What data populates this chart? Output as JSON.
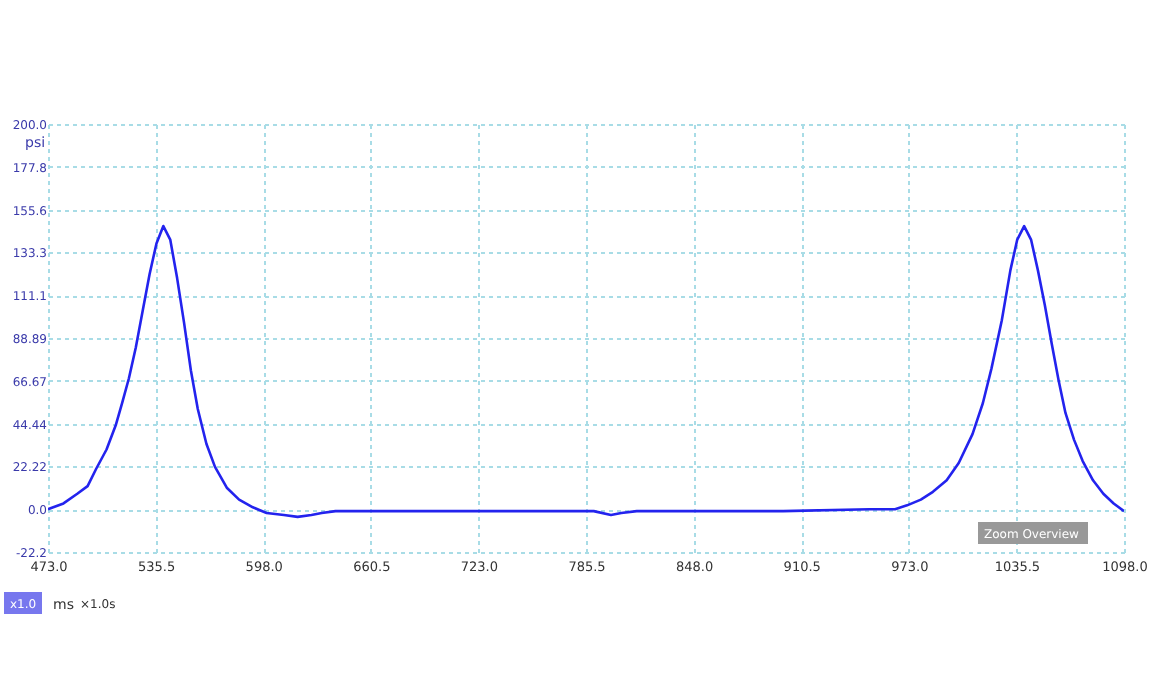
{
  "chart_data": {
    "type": "line",
    "xlabel": "ms",
    "ylabel": "psi",
    "annotations": [
      "x1.0",
      "×1.0s",
      "Zoom Overview"
    ],
    "x": [
      473,
      482,
      490,
      496,
      501,
      507,
      512.5,
      516,
      520,
      524,
      528,
      532,
      536,
      540,
      544,
      548,
      552,
      556,
      560,
      565,
      570,
      577,
      584,
      592,
      600,
      610,
      618,
      626,
      632,
      640,
      660,
      700,
      750,
      790,
      800,
      806,
      815,
      850,
      900,
      950,
      965,
      972,
      980,
      987,
      995,
      1002,
      1010,
      1016,
      1021,
      1027,
      1032,
      1036,
      1040,
      1044,
      1048,
      1052,
      1056,
      1060,
      1064,
      1069,
      1074,
      1080,
      1086,
      1092,
      1098
    ],
    "series": [
      {
        "color": "#2323ee",
        "values": [
          0,
          3,
          8,
          12,
          21,
          31,
          44,
          55,
          68,
          84,
          103,
          122,
          138,
          147,
          140,
          120,
          97,
          72,
          52,
          34,
          22,
          11,
          5,
          1,
          -2,
          -3,
          -4,
          -3,
          -2,
          -1,
          -1,
          -1,
          -1,
          -1,
          -3,
          -2,
          -1,
          -1,
          -1,
          0,
          0,
          2,
          5,
          9,
          15,
          24,
          39,
          55,
          73,
          98,
          124,
          140,
          147,
          140,
          124,
          106,
          86,
          67,
          50,
          36,
          25,
          15,
          8,
          3,
          -1
        ]
      }
    ],
    "xlim": [
      473,
      1098
    ],
    "xticks": [
      {
        "value": 473,
        "label": "473.0"
      },
      535.5,
      {
        "value": 598,
        "label": "598.0"
      },
      660.5,
      {
        "value": 723,
        "label": "723.0"
      },
      785.5,
      {
        "value": 848,
        "label": "848.0"
      },
      910.5,
      {
        "value": 973,
        "label": "973.0"
      },
      1035.5,
      {
        "value": 1098,
        "label": "1098.0"
      }
    ],
    "ylim": [
      -22.22,
      200
    ],
    "yticks": [
      {
        "value": -22.22,
        "label": "-22.2"
      },
      {
        "value": 0,
        "label": "0.0"
      },
      22.22,
      44.44,
      66.67,
      88.89,
      111.1,
      133.3,
      155.6,
      177.8,
      {
        "value": 200,
        "label": "200.0"
      }
    ],
    "grid": true,
    "marker": "none",
    "line_style": "solid"
  }
}
